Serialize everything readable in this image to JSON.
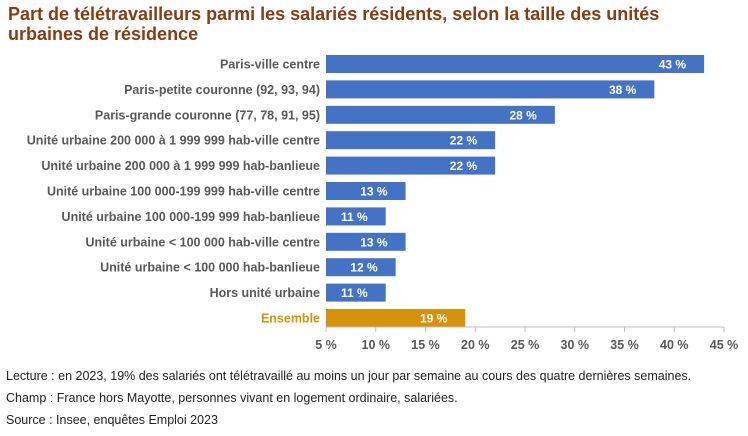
{
  "chart_data": {
    "type": "bar",
    "orientation": "horizontal",
    "title": "Part de télétravailleurs parmi les salariés résidents, selon la taille des unités urbaines de résidence",
    "categories": [
      "Paris-ville centre",
      "Paris-petite couronne (92, 93, 94)",
      "Paris-grande couronne (77, 78, 91, 95)",
      "Unité urbaine 200 000 à 1 999 999 hab-ville centre",
      "Unité urbaine 200 000 à 1 999 999 hab-banlieue",
      "Unité urbaine 100 000-199 999 hab-ville centre",
      "Unité urbaine 100 000-199 999 hab-banlieue",
      "Unité urbaine < 100 000 hab-ville centre",
      "Unité urbaine < 100 000 hab-banlieue",
      "Hors unité urbaine",
      "Ensemble"
    ],
    "values": [
      43,
      38,
      28,
      22,
      22,
      13,
      11,
      13,
      12,
      11,
      19
    ],
    "data_labels": [
      "43 %",
      "38 %",
      "28 %",
      "22 %",
      "22 %",
      "13 %",
      "11 %",
      "13 %",
      "12 %",
      "11 %",
      "19 %"
    ],
    "highlight_category": "Ensemble",
    "xlim": [
      5,
      45
    ],
    "x_ticks": [
      5,
      10,
      15,
      20,
      25,
      30,
      35,
      40,
      45
    ],
    "x_tick_labels": [
      "5 %",
      "10 %",
      "15 %",
      "20 %",
      "25 %",
      "30 %",
      "35 %",
      "40 %",
      "45 %"
    ],
    "xlabel": "",
    "ylabel": "",
    "grid": false,
    "legend": "none"
  },
  "colors": {
    "bar": "#4472c4",
    "highlight_bar": "#d6920a",
    "highlight_label": "#d6920a",
    "title": "#8a3b12",
    "axis": "#bfbfbf"
  },
  "notes": {
    "lecture": "Lecture : en 2023, 19% des salariés ont télétravaillé au moins un jour par semaine au cours des quatre dernières semaines.",
    "champ": "Champ : France hors Mayotte, personnes vivant en logement ordinaire, salariées.",
    "source": "Source : Insee, enquêtes Emploi 2023"
  }
}
